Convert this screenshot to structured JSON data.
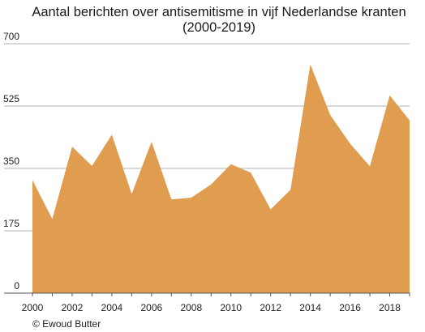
{
  "chart_data": {
    "type": "area",
    "title_line1": "Aantal berichten over antisemitisme in vijf Nederlandse kranten",
    "title_line2": "(2000-2019)",
    "x": [
      2000,
      2001,
      2002,
      2003,
      2004,
      2005,
      2006,
      2007,
      2008,
      2009,
      2010,
      2011,
      2012,
      2013,
      2014,
      2015,
      2016,
      2017,
      2018,
      2019
    ],
    "values": [
      317,
      208,
      411,
      357,
      445,
      278,
      425,
      263,
      268,
      305,
      362,
      338,
      235,
      290,
      642,
      500,
      420,
      356,
      555,
      485
    ],
    "ylim": [
      0,
      700
    ],
    "yticks": [
      0,
      175,
      350,
      525,
      700
    ],
    "xticks": [
      "2000",
      "2002",
      "2004",
      "2006",
      "2008",
      "2010",
      "2012",
      "2014",
      "2016",
      "2018"
    ],
    "grid": true,
    "fill_color": "#e09c4f",
    "grid_color": "#b0b0b0"
  },
  "credit": "© Ewoud Butter"
}
